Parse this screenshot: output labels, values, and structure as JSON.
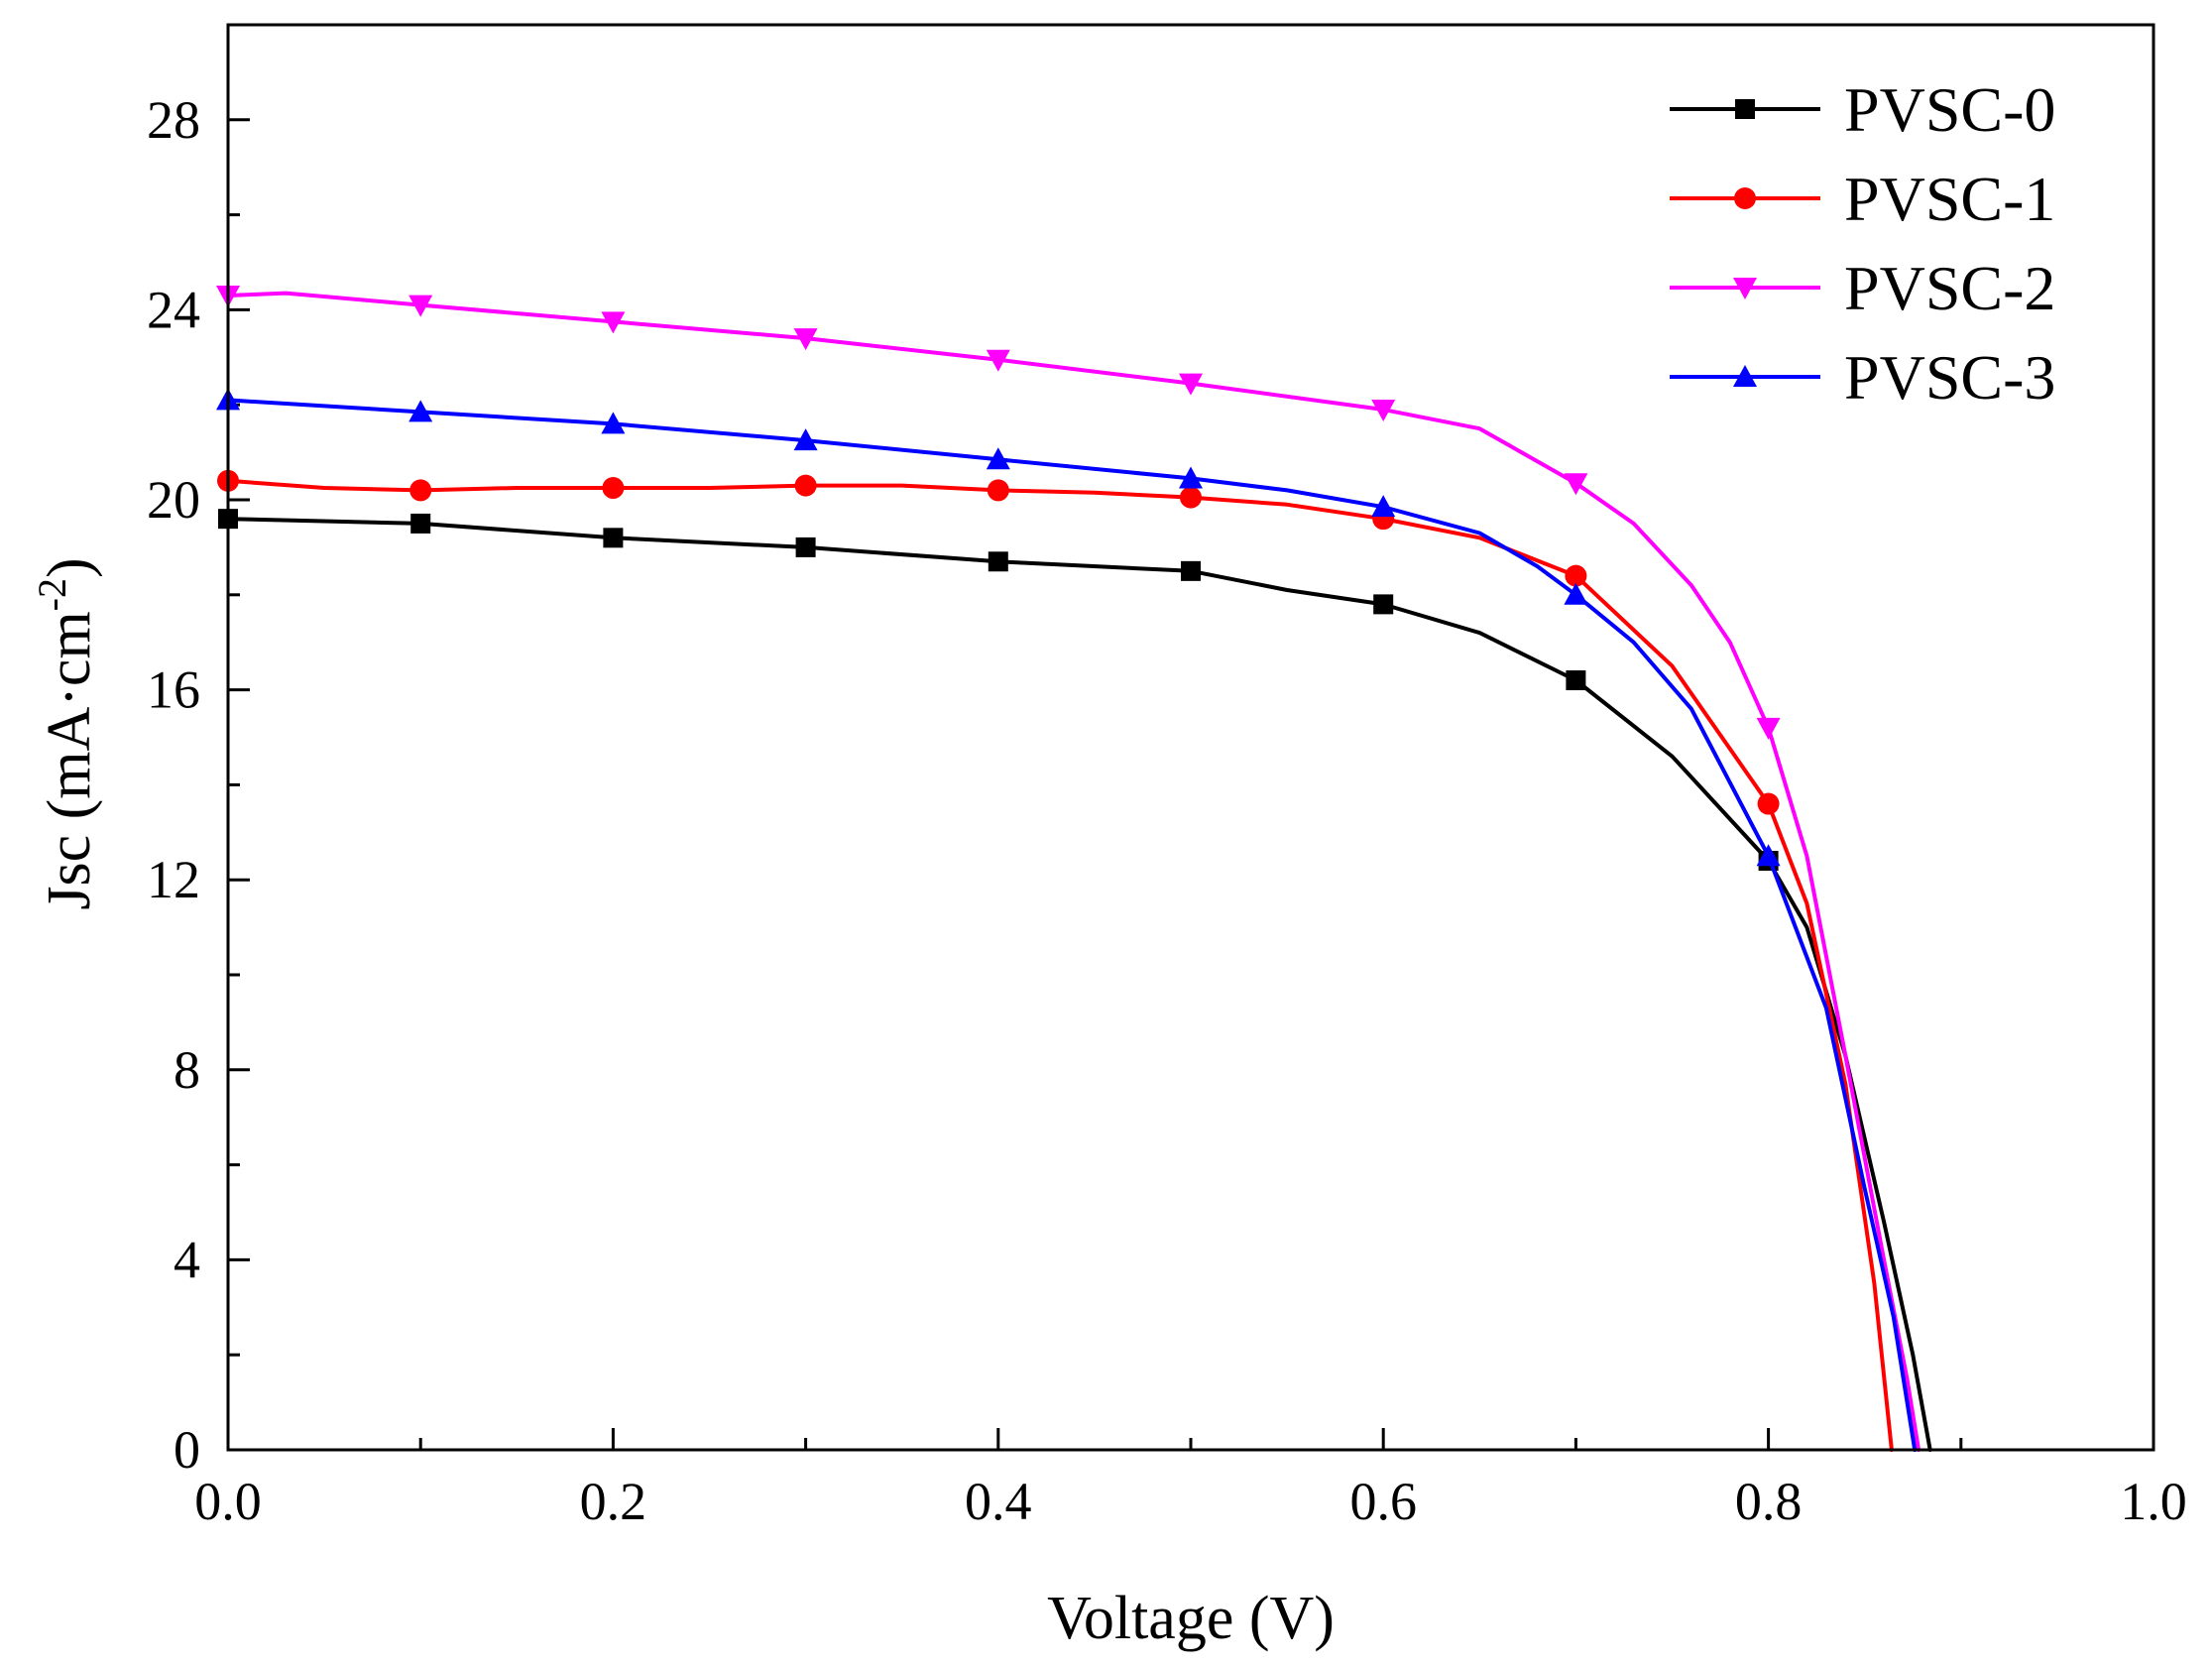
{
  "chart_data": {
    "type": "line",
    "title": "",
    "xlabel": "Voltage (V)",
    "ylabel_main": "Jsc (mA·cm",
    "ylabel_sup": "-2",
    "ylabel_close": ")",
    "xlim": [
      0.0,
      1.0
    ],
    "ylim": [
      0,
      30
    ],
    "x_ticks": [
      0.0,
      0.2,
      0.4,
      0.6,
      0.8,
      1.0
    ],
    "x_tick_labels": [
      "0.0",
      "0.2",
      "0.4",
      "0.6",
      "0.8",
      "1.0"
    ],
    "y_ticks": [
      0,
      4,
      8,
      12,
      16,
      20,
      24,
      28
    ],
    "y_tick_labels": [
      "0",
      "4",
      "8",
      "12",
      "16",
      "20",
      "24",
      "28"
    ],
    "legend_position": "top-right",
    "series": [
      {
        "name": "PVSC-0",
        "color": "#000000",
        "marker": "square",
        "x": [
          0.0,
          0.1,
          0.2,
          0.3,
          0.4,
          0.5,
          0.55,
          0.6,
          0.65,
          0.7,
          0.75,
          0.8,
          0.82,
          0.84,
          0.86,
          0.875,
          0.884
        ],
        "y": [
          19.6,
          19.5,
          19.2,
          19.0,
          18.7,
          18.5,
          18.1,
          17.8,
          17.2,
          16.2,
          14.6,
          12.4,
          11.0,
          8.3,
          4.8,
          2.0,
          0.0
        ],
        "marker_x": [
          0.0,
          0.1,
          0.2,
          0.3,
          0.4,
          0.5,
          0.6,
          0.7,
          0.8
        ],
        "marker_y": [
          19.6,
          19.5,
          19.2,
          19.0,
          18.7,
          18.5,
          17.8,
          16.2,
          12.4
        ]
      },
      {
        "name": "PVSC-1",
        "color": "#ff0000",
        "marker": "circle",
        "x": [
          0.0,
          0.05,
          0.1,
          0.15,
          0.2,
          0.25,
          0.3,
          0.35,
          0.4,
          0.45,
          0.5,
          0.55,
          0.6,
          0.65,
          0.7,
          0.75,
          0.8,
          0.82,
          0.84,
          0.855,
          0.864
        ],
        "y": [
          20.4,
          20.25,
          20.2,
          20.25,
          20.25,
          20.25,
          20.3,
          20.3,
          20.2,
          20.15,
          20.05,
          19.9,
          19.6,
          19.2,
          18.4,
          16.5,
          13.6,
          11.5,
          7.7,
          3.5,
          0.0
        ],
        "marker_x": [
          0.0,
          0.1,
          0.2,
          0.3,
          0.4,
          0.5,
          0.6,
          0.7,
          0.8
        ],
        "marker_y": [
          20.4,
          20.2,
          20.25,
          20.3,
          20.2,
          20.05,
          19.6,
          18.4,
          13.6
        ]
      },
      {
        "name": "PVSC-2",
        "color": "#ff00ff",
        "marker": "triangle-down",
        "x": [
          0.0,
          0.03,
          0.1,
          0.2,
          0.3,
          0.4,
          0.5,
          0.6,
          0.65,
          0.7,
          0.73,
          0.76,
          0.78,
          0.8,
          0.82,
          0.84,
          0.86,
          0.872,
          0.878
        ],
        "y": [
          24.3,
          24.35,
          24.1,
          23.75,
          23.4,
          22.95,
          22.45,
          21.9,
          21.5,
          20.35,
          19.5,
          18.2,
          17.0,
          15.2,
          12.5,
          8.3,
          4.0,
          1.5,
          0.0
        ],
        "marker_x": [
          0.0,
          0.1,
          0.2,
          0.3,
          0.4,
          0.5,
          0.6,
          0.7,
          0.8
        ],
        "marker_y": [
          24.3,
          24.1,
          23.75,
          23.4,
          22.95,
          22.45,
          21.9,
          20.35,
          15.2
        ]
      },
      {
        "name": "PVSC-3",
        "color": "#0000ff",
        "marker": "triangle-up",
        "x": [
          0.0,
          0.1,
          0.2,
          0.3,
          0.4,
          0.5,
          0.55,
          0.6,
          0.65,
          0.68,
          0.7,
          0.73,
          0.76,
          0.8,
          0.83,
          0.85,
          0.865,
          0.876
        ],
        "y": [
          22.1,
          21.85,
          21.6,
          21.25,
          20.85,
          20.45,
          20.2,
          19.85,
          19.3,
          18.6,
          18.0,
          17.0,
          15.6,
          12.5,
          9.3,
          5.5,
          2.8,
          0.0
        ],
        "marker_x": [
          0.0,
          0.1,
          0.2,
          0.3,
          0.4,
          0.5,
          0.6,
          0.7,
          0.8
        ],
        "marker_y": [
          22.1,
          21.85,
          21.6,
          21.25,
          20.85,
          20.45,
          19.85,
          18.0,
          12.5
        ]
      }
    ]
  }
}
